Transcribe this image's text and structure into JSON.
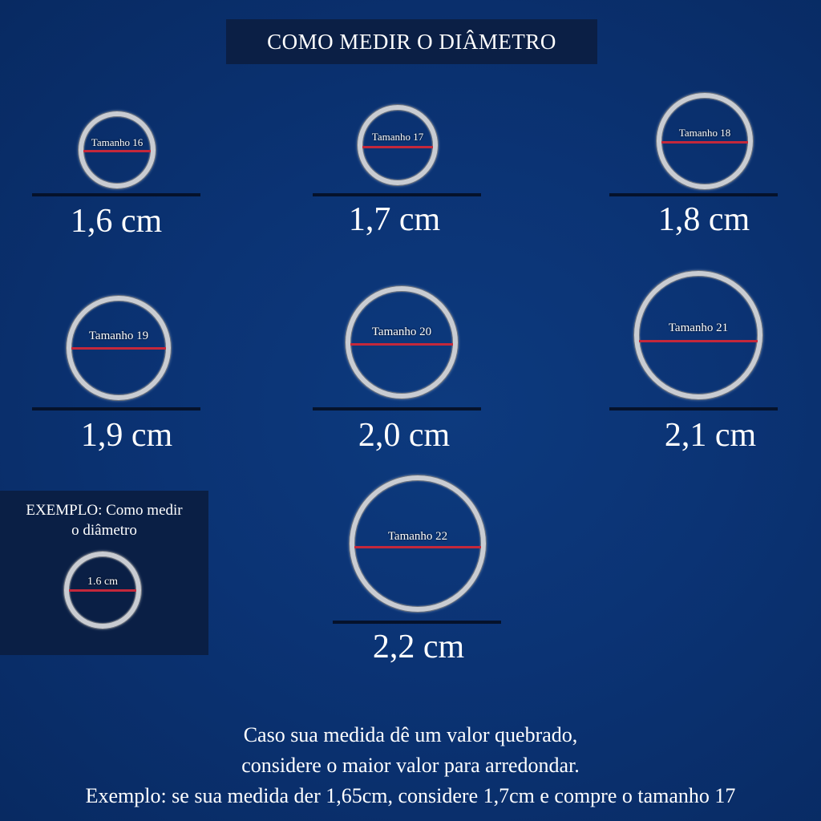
{
  "title": "COMO MEDIR O DIÂMETRO",
  "rings": [
    {
      "label": "Tamanho 16",
      "size": "1,6 cm"
    },
    {
      "label": "Tamanho 17",
      "size": "1,7 cm"
    },
    {
      "label": "Tamanho 18",
      "size": "1,8 cm"
    },
    {
      "label": "Tamanho 19",
      "size": "1,9 cm"
    },
    {
      "label": "Tamanho 20",
      "size": "2,0 cm"
    },
    {
      "label": "Tamanho 21",
      "size": "2,1 cm"
    },
    {
      "label": "Tamanho 22",
      "size": "2,2 cm"
    }
  ],
  "example": {
    "title_line1": "EXEMPLO: Como medir",
    "title_line2": "o diâmetro",
    "ring_label": "1.6 cm"
  },
  "note": {
    "line1": "Caso sua medida dê um valor quebrado,",
    "line2": "considere o maior valor para arredondar.",
    "line3": "Exemplo: se sua medida der 1,65cm, considere 1,7cm e compre o tamanho 17"
  },
  "colors": {
    "background": "#0b3374",
    "panel": "#0b1f45",
    "measure_line": "#c4283b",
    "ring": "#c9ccd2"
  }
}
